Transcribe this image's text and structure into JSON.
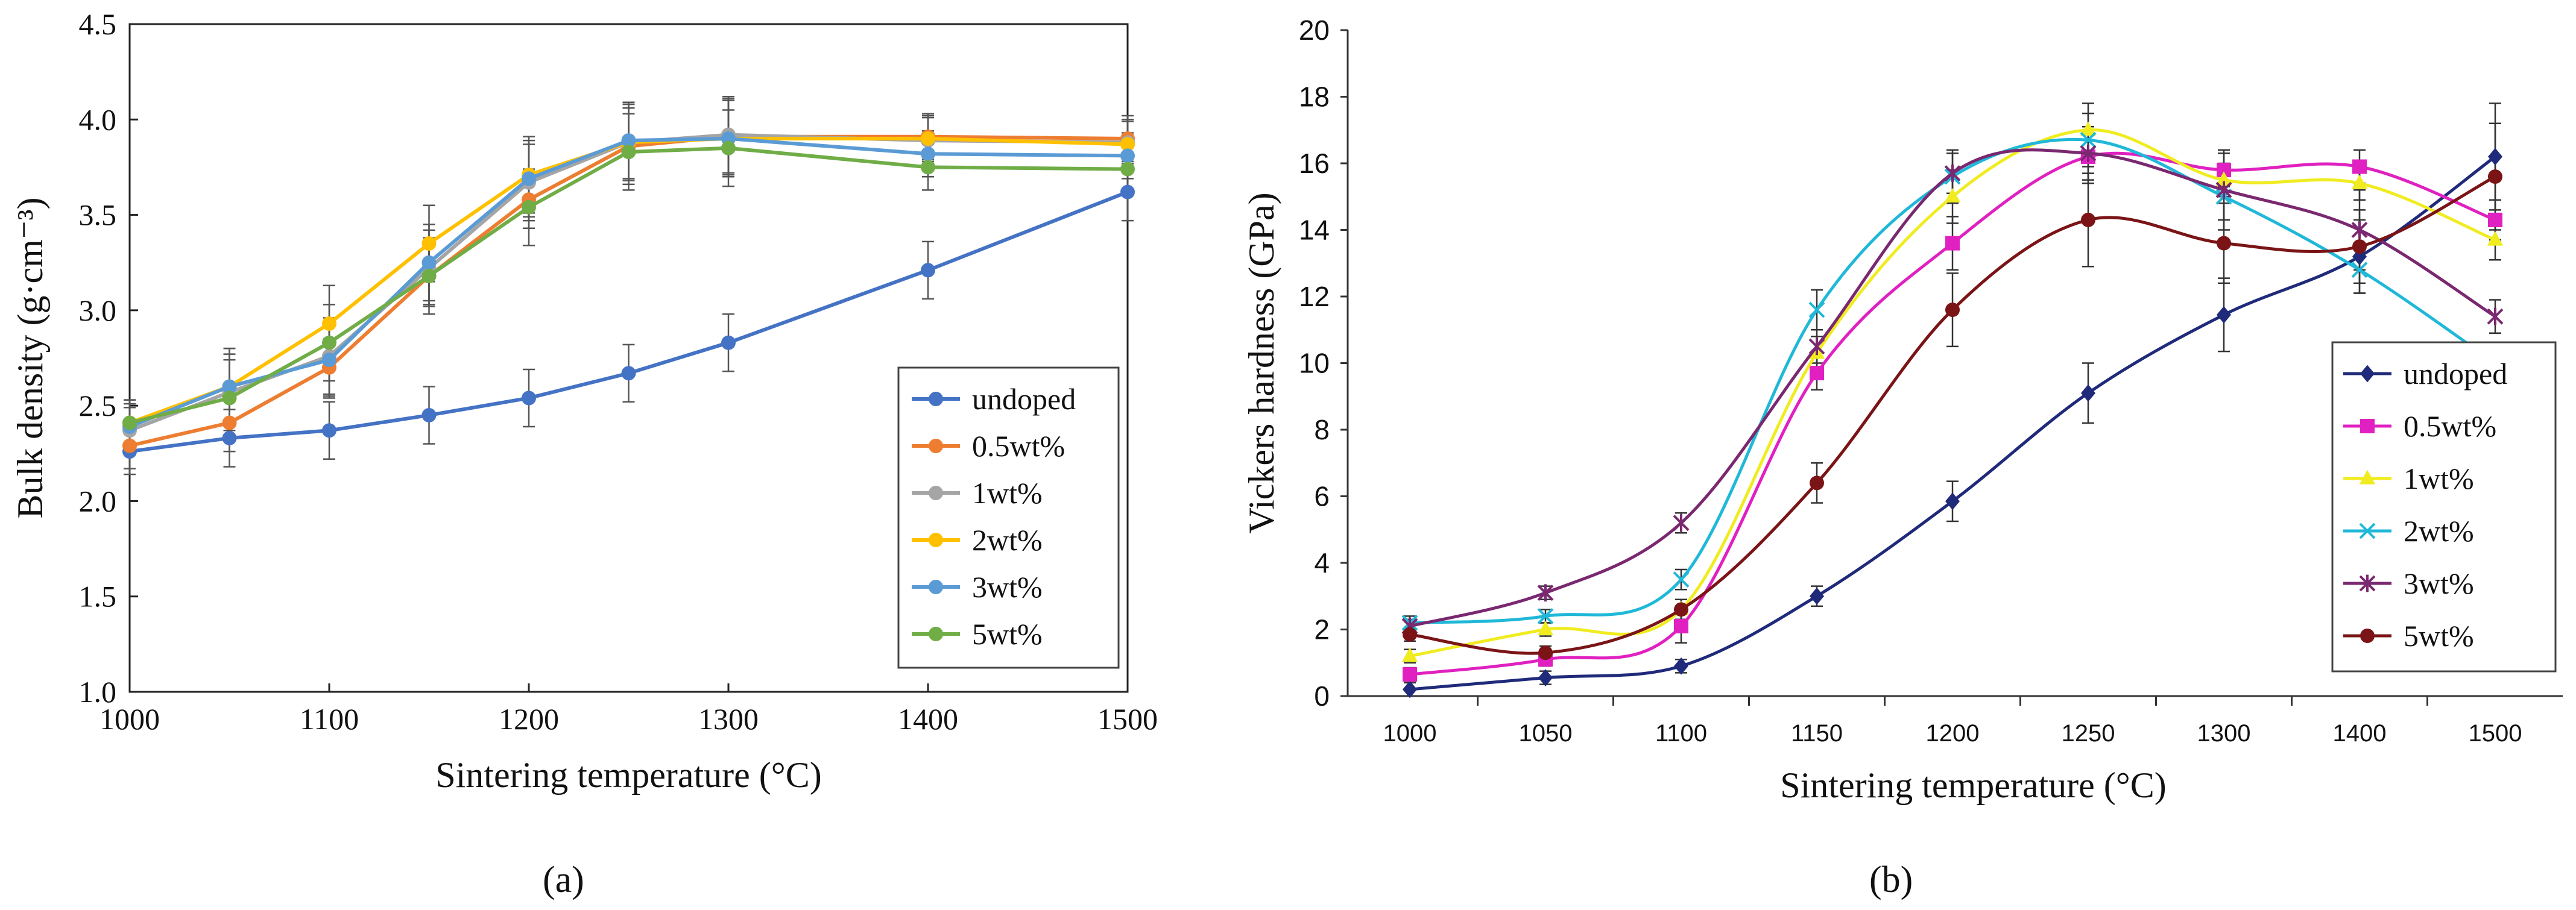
{
  "panel_labels": {
    "a": "(a)",
    "b": "(b)"
  },
  "chart_data": [
    {
      "type": "line",
      "xlabel": "Sintering temperature (°C)",
      "ylabel": "Bulk density (g·cm⁻³)",
      "xlim": [
        1000,
        1500
      ],
      "ylim": [
        1.0,
        4.5
      ],
      "x_ticks": [
        1000,
        1100,
        1200,
        1300,
        1400,
        1500
      ],
      "y_ticks": [
        "1.0",
        "1.5",
        "2.0",
        "2.5",
        "3.0",
        "3.5",
        "4.0",
        "4.5"
      ],
      "grid": false,
      "legend_position": "center-right",
      "x": [
        1000,
        1050,
        1100,
        1150,
        1200,
        1250,
        1300,
        1400,
        1500
      ],
      "series": [
        {
          "name": "undoped",
          "color": "#4472c4",
          "values": [
            2.26,
            2.33,
            2.37,
            2.45,
            2.54,
            2.67,
            2.83,
            3.21,
            3.62
          ],
          "errors": [
            0.12,
            0.15,
            0.15,
            0.15,
            0.15,
            0.15,
            0.15,
            0.15,
            0.15
          ]
        },
        {
          "name": "0.5wt%",
          "color": "#ed7d31",
          "values": [
            2.29,
            2.41,
            2.7,
            3.18,
            3.58,
            3.86,
            3.91,
            3.91,
            3.9
          ],
          "errors": [
            0.12,
            0.15,
            0.15,
            0.15,
            0.15,
            0.2,
            0.2,
            0.12,
            0.12
          ]
        },
        {
          "name": "1wt%",
          "color": "#a5a5a5",
          "values": [
            2.37,
            2.57,
            2.76,
            3.22,
            3.67,
            3.88,
            3.92,
            3.89,
            3.88
          ],
          "errors": [
            0.12,
            0.2,
            0.2,
            0.2,
            0.2,
            0.2,
            0.2,
            0.12,
            0.12
          ]
        },
        {
          "name": "2wt%",
          "color": "#ffc000",
          "values": [
            2.41,
            2.6,
            2.93,
            3.35,
            3.71,
            3.88,
            3.9,
            3.9,
            3.87
          ],
          "errors": [
            0.12,
            0.2,
            0.2,
            0.2,
            0.2,
            0.2,
            0.2,
            0.12,
            0.12
          ]
        },
        {
          "name": "3wt%",
          "color": "#5b9bd5",
          "values": [
            2.39,
            2.6,
            2.74,
            3.25,
            3.69,
            3.89,
            3.9,
            3.82,
            3.81
          ],
          "errors": [
            0.12,
            0.2,
            0.2,
            0.2,
            0.2,
            0.2,
            0.2,
            0.12,
            0.12
          ]
        },
        {
          "name": "5wt%",
          "color": "#70ad47",
          "values": [
            2.41,
            2.54,
            2.83,
            3.18,
            3.54,
            3.83,
            3.85,
            3.75,
            3.74
          ],
          "errors": [
            0.12,
            0.2,
            0.2,
            0.2,
            0.2,
            0.2,
            0.2,
            0.12,
            0.12
          ]
        }
      ]
    },
    {
      "type": "line",
      "xlabel": "Sintering temperature (°C)",
      "ylabel": "Vickers hardness (GPa)",
      "ylim": [
        0,
        20
      ],
      "categories": [
        "1000",
        "1050",
        "1100",
        "1150",
        "1200",
        "1250",
        "1300",
        "1400",
        "1500"
      ],
      "y_ticks": [
        "0",
        "2",
        "4",
        "6",
        "8",
        "10",
        "12",
        "14",
        "16",
        "18",
        "20"
      ],
      "grid": false,
      "smooth": true,
      "legend_position": "bottom-right",
      "series": [
        {
          "name": "undoped",
          "color": "#1f2a7a",
          "marker": "diamond",
          "values": [
            0.2,
            0.55,
            0.9,
            3.0,
            5.85,
            9.1,
            11.45,
            13.2,
            16.2
          ],
          "errors": [
            0.2,
            0.2,
            0.2,
            0.3,
            0.6,
            0.9,
            1.1,
            1.1,
            1.6
          ]
        },
        {
          "name": "0.5wt%",
          "color": "#e020c0",
          "marker": "square",
          "values": [
            0.65,
            1.1,
            2.1,
            9.7,
            13.6,
            16.2,
            15.8,
            15.9,
            14.3
          ],
          "errors": [
            0.2,
            0.2,
            0.5,
            0.5,
            0.8,
            0.8,
            0.5,
            0.5,
            0.6
          ]
        },
        {
          "name": "1wt%",
          "color": "#f0ec20",
          "marker": "triangle",
          "values": [
            1.2,
            2.0,
            2.6,
            10.3,
            15.0,
            17.0,
            15.5,
            15.4,
            13.7
          ],
          "errors": [
            0.2,
            0.2,
            0.3,
            0.5,
            0.8,
            0.8,
            0.5,
            0.5,
            0.6
          ]
        },
        {
          "name": "2wt%",
          "color": "#20b8d8",
          "marker": "x",
          "values": [
            2.2,
            2.4,
            3.5,
            11.6,
            15.6,
            16.7,
            15.0,
            12.8,
            10.0
          ],
          "errors": [
            0.2,
            0.2,
            0.3,
            0.6,
            0.8,
            0.8,
            0.7,
            0.7,
            0.6
          ]
        },
        {
          "name": "3wt%",
          "color": "#7a2870",
          "marker": "star",
          "values": [
            2.1,
            3.1,
            5.2,
            10.5,
            15.7,
            16.3,
            15.2,
            14.0,
            11.4
          ],
          "errors": [
            0.2,
            0.2,
            0.3,
            0.5,
            0.6,
            0.8,
            1.2,
            1.2,
            0.5
          ]
        },
        {
          "name": "5wt%",
          "color": "#7a1416",
          "marker": "circle",
          "values": [
            1.85,
            1.3,
            2.6,
            6.4,
            11.6,
            14.3,
            13.6,
            13.5,
            15.6
          ],
          "errors": [
            0.2,
            0.2,
            0.3,
            0.6,
            1.1,
            1.4,
            1.2,
            1.1,
            1.6
          ]
        }
      ]
    }
  ]
}
